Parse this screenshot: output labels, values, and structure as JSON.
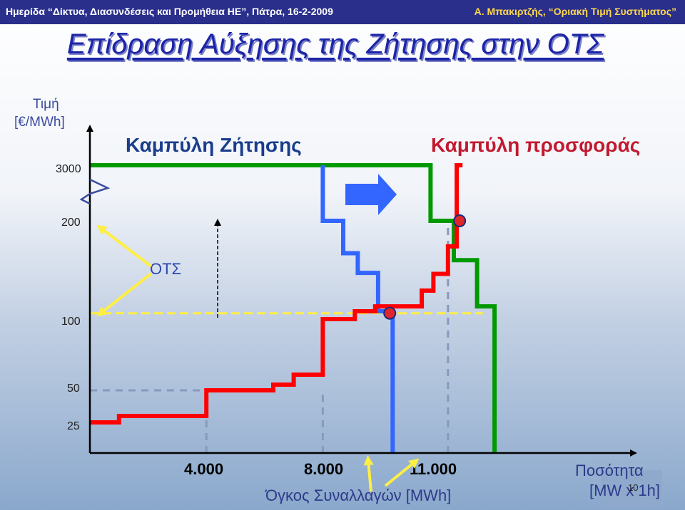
{
  "header": {
    "left": "Ημερίδα “Δίκτυα, Διασυνδέσεις και Προμήθεια ΗΕ”, Πάτρα, 16-2-2009",
    "right": "Α. Μπακιρτζής, “Οριακή Τιμή Συστήματος”"
  },
  "slide": {
    "title": "Επίδραση Αύξησης της Ζήτησης στην ΟΤΣ",
    "page_number": "10"
  },
  "chart_data": {
    "type": "line",
    "title": "",
    "ylabel": [
      "Τιμή",
      "[€/MWh]"
    ],
    "xlabel": "Όγκος Συναλλαγών [MWh]",
    "xlabel_right": [
      "Ποσότητα",
      "[MW x 1h]"
    ],
    "y_ticks": [
      "3000",
      "200",
      "100",
      "50",
      "25"
    ],
    "x_ticks": [
      "4.000",
      "8.000",
      "11.000"
    ],
    "y_axis_break": true,
    "series": [
      {
        "name": "Καμπύλη προσφοράς",
        "color": "#ff0000",
        "points": [
          [
            0,
            25
          ],
          [
            1.0,
            25
          ],
          [
            1.0,
            30
          ],
          [
            4.0,
            30
          ],
          [
            4.0,
            50
          ],
          [
            6.3,
            50
          ],
          [
            6.3,
            54
          ],
          [
            7.0,
            54
          ],
          [
            7.0,
            61
          ],
          [
            8.0,
            61
          ],
          [
            8.0,
            100
          ],
          [
            9.1,
            100
          ],
          [
            9.1,
            108
          ],
          [
            9.8,
            108
          ],
          [
            9.8,
            113
          ],
          [
            11.4,
            113
          ],
          [
            11.4,
            129
          ],
          [
            11.8,
            129
          ],
          [
            11.8,
            146
          ],
          [
            12.3,
            146
          ],
          [
            12.3,
            174
          ],
          [
            12.6,
            174
          ],
          [
            12.6,
            300
          ],
          [
            12.8,
            300
          ],
          [
            12.8,
            3000
          ]
        ]
      },
      {
        "name": "Καμπύλη Ζήτησης",
        "color": "#009900",
        "points": [
          [
            0,
            3000
          ],
          [
            11.7,
            3000
          ],
          [
            11.7,
            200
          ],
          [
            12.5,
            200
          ],
          [
            12.5,
            160
          ],
          [
            13.3,
            160
          ],
          [
            13.3,
            113
          ],
          [
            13.9,
            113
          ],
          [
            13.9,
            0
          ]
        ]
      },
      {
        "name": "",
        "color": "#3366ff",
        "points": [
          [
            8.0,
            3000
          ],
          [
            8.0,
            200
          ],
          [
            8.7,
            200
          ],
          [
            8.7,
            167
          ],
          [
            9.2,
            167
          ],
          [
            9.2,
            147
          ],
          [
            9.9,
            147
          ],
          [
            9.9,
            108
          ],
          [
            10.4,
            108
          ],
          [
            10.4,
            0
          ]
        ]
      }
    ],
    "equilibria": [
      {
        "x": 10.3,
        "y": 106
      },
      {
        "x": 12.7,
        "y": 200
      }
    ],
    "reference_lines": [
      {
        "y": 106,
        "color": "#ffee44"
      },
      {
        "y": 50,
        "color": "#8899bb"
      },
      {
        "x": 4.0,
        "color": "#8899bb"
      },
      {
        "x": 8.0,
        "color": "#8899bb"
      },
      {
        "x": 12.3,
        "color": "#8899bb"
      }
    ],
    "annotations": [
      {
        "text": "ΟΤΣ",
        "points_to": [
          200,
          106
        ]
      }
    ],
    "shift_arrow": "right"
  }
}
